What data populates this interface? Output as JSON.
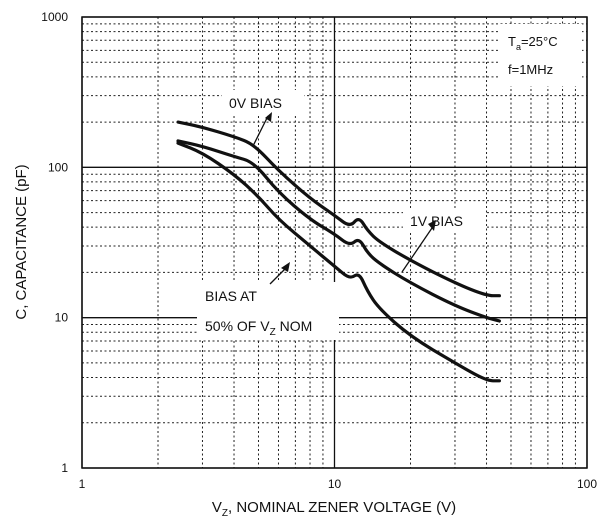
{
  "chart_data": {
    "type": "line",
    "xlabel": "V",
    "xlabel_sub": "Z",
    "xlabel_rest": ", NOMINAL ZENER VOLTAGE (V)",
    "ylabel": "C, CAPACITANCE (pF)",
    "x_scale": "log",
    "y_scale": "log",
    "xlim": [
      1,
      100
    ],
    "ylim": [
      1,
      1000
    ],
    "x_ticks": [
      "1",
      "10",
      "100"
    ],
    "y_ticks": [
      "1",
      "10",
      "100",
      "1000"
    ],
    "grid": true,
    "conditions": {
      "ta_main": "T",
      "ta_sub": "a",
      "ta_rest": "=25°C",
      "freq": "f=1MHz"
    },
    "series": [
      {
        "label": "0V BIAS",
        "x": [
          2.4,
          3,
          4,
          4.8,
          6,
          8,
          10,
          11.5,
          12.5,
          13.5,
          15,
          20,
          30,
          40,
          45
        ],
        "y": [
          200,
          185,
          160,
          142,
          95,
          62,
          48,
          40,
          47,
          38,
          32,
          24,
          17,
          14,
          14
        ]
      },
      {
        "label": "1V BIAS",
        "x": [
          2.4,
          3,
          4,
          4.8,
          6,
          8,
          10,
          11.5,
          12.5,
          13.5,
          15,
          20,
          30,
          40,
          45
        ],
        "y": [
          150,
          138,
          118,
          108,
          68,
          45,
          36,
          30,
          34,
          27,
          23,
          17,
          12,
          10,
          9.5
        ]
      },
      {
        "label": "BIAS AT 50% OF V_Z NOM",
        "x": [
          2.4,
          3,
          4,
          5,
          6,
          8,
          10,
          11.5,
          12.5,
          13.5,
          15,
          20,
          30,
          40,
          45
        ],
        "y": [
          145,
          125,
          90,
          64,
          45,
          30,
          22,
          18,
          20,
          15,
          11.5,
          7.5,
          5,
          3.8,
          3.8
        ]
      }
    ],
    "annotations": {
      "zero_v": "0V BIAS",
      "one_v": "1V BIAS",
      "half_line1": "BIAS AT",
      "half_line2_pre": "50% OF V",
      "half_line2_sub": "Z",
      "half_line2_post": " NOM"
    }
  }
}
